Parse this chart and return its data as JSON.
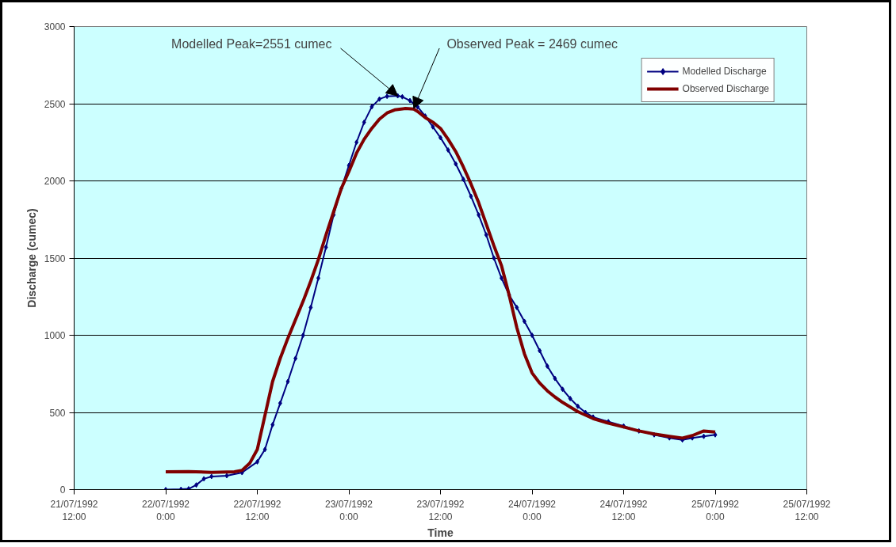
{
  "chart_data": {
    "type": "line",
    "xlabel": "Time",
    "ylabel": "Discharge (cumec)",
    "xlim": [
      "1992-07-21T12:00",
      "1992-07-25T12:00"
    ],
    "xticks": [
      {
        "value": "1992-07-21T12:00",
        "label": "21/07/1992\n12:00"
      },
      {
        "value": "1992-07-22T00:00",
        "label": "22/07/1992\n0:00"
      },
      {
        "value": "1992-07-22T12:00",
        "label": "22/07/1992\n12:00"
      },
      {
        "value": "1992-07-23T00:00",
        "label": "23/07/1992\n0:00"
      },
      {
        "value": "1992-07-23T12:00",
        "label": "23/07/1992\n12:00"
      },
      {
        "value": "1992-07-24T00:00",
        "label": "24/07/1992\n0:00"
      },
      {
        "value": "1992-07-24T12:00",
        "label": "24/07/1992\n12:00"
      },
      {
        "value": "1992-07-25T00:00",
        "label": "25/07/1992\n0:00"
      },
      {
        "value": "1992-07-25T12:00",
        "label": "25/07/1992\n12:00"
      }
    ],
    "ylim": [
      0,
      3000
    ],
    "yticks": [
      0,
      500,
      1000,
      1500,
      2000,
      2500,
      3000
    ],
    "grid": "y",
    "legend": "top right",
    "annotations": [
      {
        "text": "Modelled Peak=2551 cumec",
        "x": "1992-07-23T06:24",
        "y": 2551
      },
      {
        "text": "Observed Peak = 2469 cumec",
        "x": "1992-07-23T08:30",
        "y": 2469
      }
    ],
    "series": [
      {
        "name": "Modelled Discharge",
        "color": "#000080",
        "marker": "diamond",
        "x": [
          "1992-07-22T00:00",
          "1992-07-22T02:00",
          "1992-07-22T03:00",
          "1992-07-22T04:00",
          "1992-07-22T05:00",
          "1992-07-22T06:00",
          "1992-07-22T08:00",
          "1992-07-22T10:00",
          "1992-07-22T12:00",
          "1992-07-22T13:00",
          "1992-07-22T14:00",
          "1992-07-22T15:00",
          "1992-07-22T16:00",
          "1992-07-22T17:00",
          "1992-07-22T18:00",
          "1992-07-22T19:00",
          "1992-07-22T20:00",
          "1992-07-22T21:00",
          "1992-07-22T22:00",
          "1992-07-22T23:00",
          "1992-07-23T00:00",
          "1992-07-23T01:00",
          "1992-07-23T02:00",
          "1992-07-23T03:00",
          "1992-07-23T04:00",
          "1992-07-23T05:00",
          "1992-07-23T06:24",
          "1992-07-23T07:00",
          "1992-07-23T08:00",
          "1992-07-23T09:00",
          "1992-07-23T10:00",
          "1992-07-23T11:00",
          "1992-07-23T12:00",
          "1992-07-23T13:00",
          "1992-07-23T14:00",
          "1992-07-23T15:00",
          "1992-07-23T16:00",
          "1992-07-23T17:00",
          "1992-07-23T18:00",
          "1992-07-23T19:00",
          "1992-07-23T20:00",
          "1992-07-23T21:00",
          "1992-07-23T22:00",
          "1992-07-23T23:00",
          "1992-07-24T00:00",
          "1992-07-24T01:00",
          "1992-07-24T02:00",
          "1992-07-24T03:00",
          "1992-07-24T04:00",
          "1992-07-24T05:00",
          "1992-07-24T06:00",
          "1992-07-24T07:00",
          "1992-07-24T08:00",
          "1992-07-24T10:00",
          "1992-07-24T12:00",
          "1992-07-24T14:00",
          "1992-07-24T16:00",
          "1992-07-24T18:00",
          "1992-07-24T19:42",
          "1992-07-24T21:00",
          "1992-07-24T22:30",
          "1992-07-25T00:00"
        ],
        "values": [
          0,
          2,
          5,
          30,
          70,
          85,
          90,
          110,
          180,
          260,
          420,
          560,
          700,
          850,
          1000,
          1180,
          1370,
          1570,
          1780,
          1950,
          2100,
          2250,
          2380,
          2480,
          2530,
          2548,
          2551,
          2545,
          2520,
          2480,
          2420,
          2350,
          2280,
          2200,
          2110,
          2010,
          1900,
          1780,
          1650,
          1500,
          1370,
          1260,
          1180,
          1090,
          1000,
          900,
          800,
          720,
          650,
          590,
          540,
          500,
          470,
          440,
          412,
          380,
          355,
          335,
          322,
          335,
          345,
          355
        ]
      },
      {
        "name": "Observed Discharge",
        "color": "#800000",
        "marker": "none",
        "x": [
          "1992-07-22T00:00",
          "1992-07-22T03:00",
          "1992-07-22T06:00",
          "1992-07-22T09:00",
          "1992-07-22T10:00",
          "1992-07-22T11:00",
          "1992-07-22T12:00",
          "1992-07-22T13:00",
          "1992-07-22T14:00",
          "1992-07-22T15:00",
          "1992-07-22T16:00",
          "1992-07-22T17:00",
          "1992-07-22T18:00",
          "1992-07-22T19:00",
          "1992-07-22T20:00",
          "1992-07-22T21:00",
          "1992-07-22T22:00",
          "1992-07-22T23:00",
          "1992-07-23T00:00",
          "1992-07-23T01:00",
          "1992-07-23T02:00",
          "1992-07-23T03:00",
          "1992-07-23T04:00",
          "1992-07-23T05:00",
          "1992-07-23T06:00",
          "1992-07-23T07:24",
          "1992-07-23T08:30",
          "1992-07-23T09:00",
          "1992-07-23T10:00",
          "1992-07-23T11:00",
          "1992-07-23T12:00",
          "1992-07-23T13:00",
          "1992-07-23T14:00",
          "1992-07-23T15:00",
          "1992-07-23T16:00",
          "1992-07-23T17:00",
          "1992-07-23T18:00",
          "1992-07-23T19:00",
          "1992-07-23T20:00",
          "1992-07-23T21:00",
          "1992-07-23T22:00",
          "1992-07-23T23:00",
          "1992-07-24T00:00",
          "1992-07-24T01:00",
          "1992-07-24T02:00",
          "1992-07-24T03:00",
          "1992-07-24T04:00",
          "1992-07-24T06:00",
          "1992-07-24T08:00",
          "1992-07-24T10:00",
          "1992-07-24T12:00",
          "1992-07-24T14:00",
          "1992-07-24T16:00",
          "1992-07-24T18:00",
          "1992-07-24T19:42",
          "1992-07-24T21:00",
          "1992-07-24T22:30",
          "1992-07-25T00:00"
        ],
        "values": [
          115,
          117,
          112,
          115,
          125,
          170,
          260,
          480,
          700,
          850,
          980,
          1100,
          1220,
          1350,
          1490,
          1650,
          1800,
          1950,
          2060,
          2180,
          2270,
          2340,
          2400,
          2440,
          2460,
          2469,
          2465,
          2450,
          2410,
          2380,
          2340,
          2270,
          2190,
          2090,
          1980,
          1860,
          1720,
          1580,
          1450,
          1260,
          1050,
          880,
          756,
          690,
          640,
          600,
          565,
          505,
          460,
          430,
          406,
          380,
          360,
          345,
          334,
          350,
          380,
          373
        ]
      }
    ]
  }
}
